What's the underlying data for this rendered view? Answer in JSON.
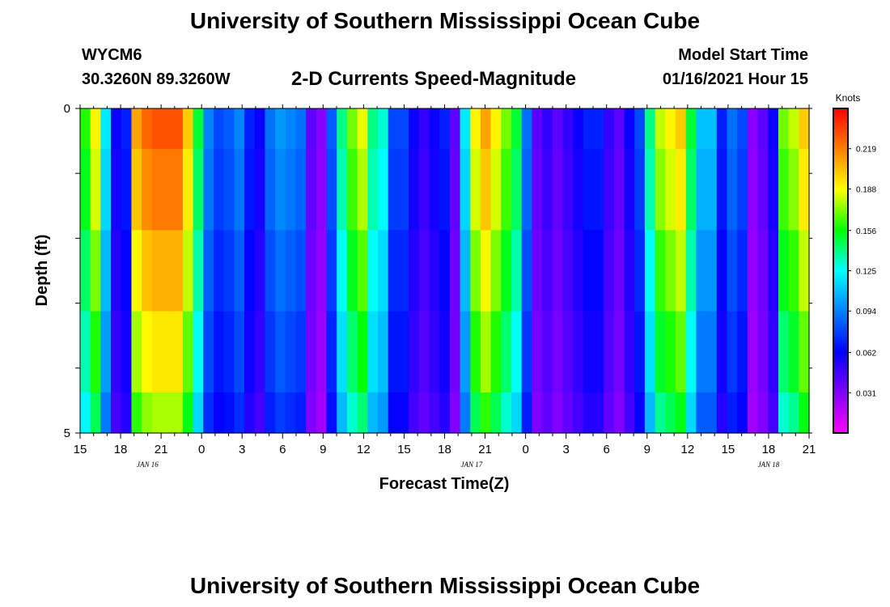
{
  "header": {
    "title": "University of Southern Mississippi Ocean Cube",
    "station": "WYCM6",
    "coordinates": "30.3260N 89.3260W",
    "subtitle": "2-D Currents Speed-Magnitude",
    "model_start_label": "Model Start Time",
    "model_start_value": "01/16/2021 Hour 15"
  },
  "footer": {
    "title": "University of Southern Mississippi Ocean Cube"
  },
  "chart_data": {
    "type": "heatmap",
    "xlabel": "Forecast Time(Z)",
    "ylabel": "Depth (ft)",
    "x_tick_labels": [
      "15",
      "18",
      "21",
      "0",
      "3",
      "6",
      "9",
      "12",
      "15",
      "18",
      "21",
      "0",
      "3",
      "6",
      "9",
      "12",
      "15",
      "18",
      "21"
    ],
    "date_labels": [
      {
        "label": "JAN 16",
        "hour": 20
      },
      {
        "label": "JAN 17",
        "hour": 44
      },
      {
        "label": "JAN 18",
        "hour": 66
      }
    ],
    "x_range_hours": [
      15,
      69
    ],
    "y_tick_labels": [
      "0",
      "5"
    ],
    "y_range_ft": [
      0,
      5
    ],
    "depth_layers": 5,
    "colorbar": {
      "title": "Knots",
      "min": 0.0,
      "max": 0.25,
      "ticks": [
        "0.219",
        "0.188",
        "0.156",
        "0.125",
        "0.094",
        "0.062",
        "0.031"
      ],
      "tick_values": [
        0.219,
        0.188,
        0.156,
        0.125,
        0.094,
        0.062,
        0.031
      ]
    },
    "colors": {
      "scale": [
        "#ff00ff",
        "#8000ff",
        "#0000ff",
        "#0080ff",
        "#00ffff",
        "#00ff00",
        "#ffff00",
        "#ff8000",
        "#ff0000"
      ]
    },
    "depth_profile_factor": [
      1.0,
      0.96,
      0.9,
      0.84,
      0.77
    ],
    "surface_speed_knots": [
      0.16,
      0.19,
      0.12,
      0.06,
      0.07,
      0.21,
      0.225,
      0.23,
      0.23,
      0.23,
      0.2,
      0.15,
      0.095,
      0.08,
      0.085,
      0.095,
      0.07,
      0.06,
      0.09,
      0.1,
      0.095,
      0.09,
      0.04,
      0.03,
      0.085,
      0.14,
      0.17,
      0.185,
      0.14,
      0.13,
      0.08,
      0.08,
      0.06,
      0.05,
      0.06,
      0.07,
      0.04,
      0.12,
      0.19,
      0.21,
      0.19,
      0.17,
      0.15,
      0.09,
      0.04,
      0.05,
      0.04,
      0.05,
      0.06,
      0.07,
      0.07,
      0.05,
      0.04,
      0.06,
      0.08,
      0.14,
      0.18,
      0.19,
      0.2,
      0.15,
      0.11,
      0.11,
      0.07,
      0.09,
      0.08,
      0.03,
      0.04,
      0.06,
      0.17,
      0.18,
      0.2
    ]
  }
}
